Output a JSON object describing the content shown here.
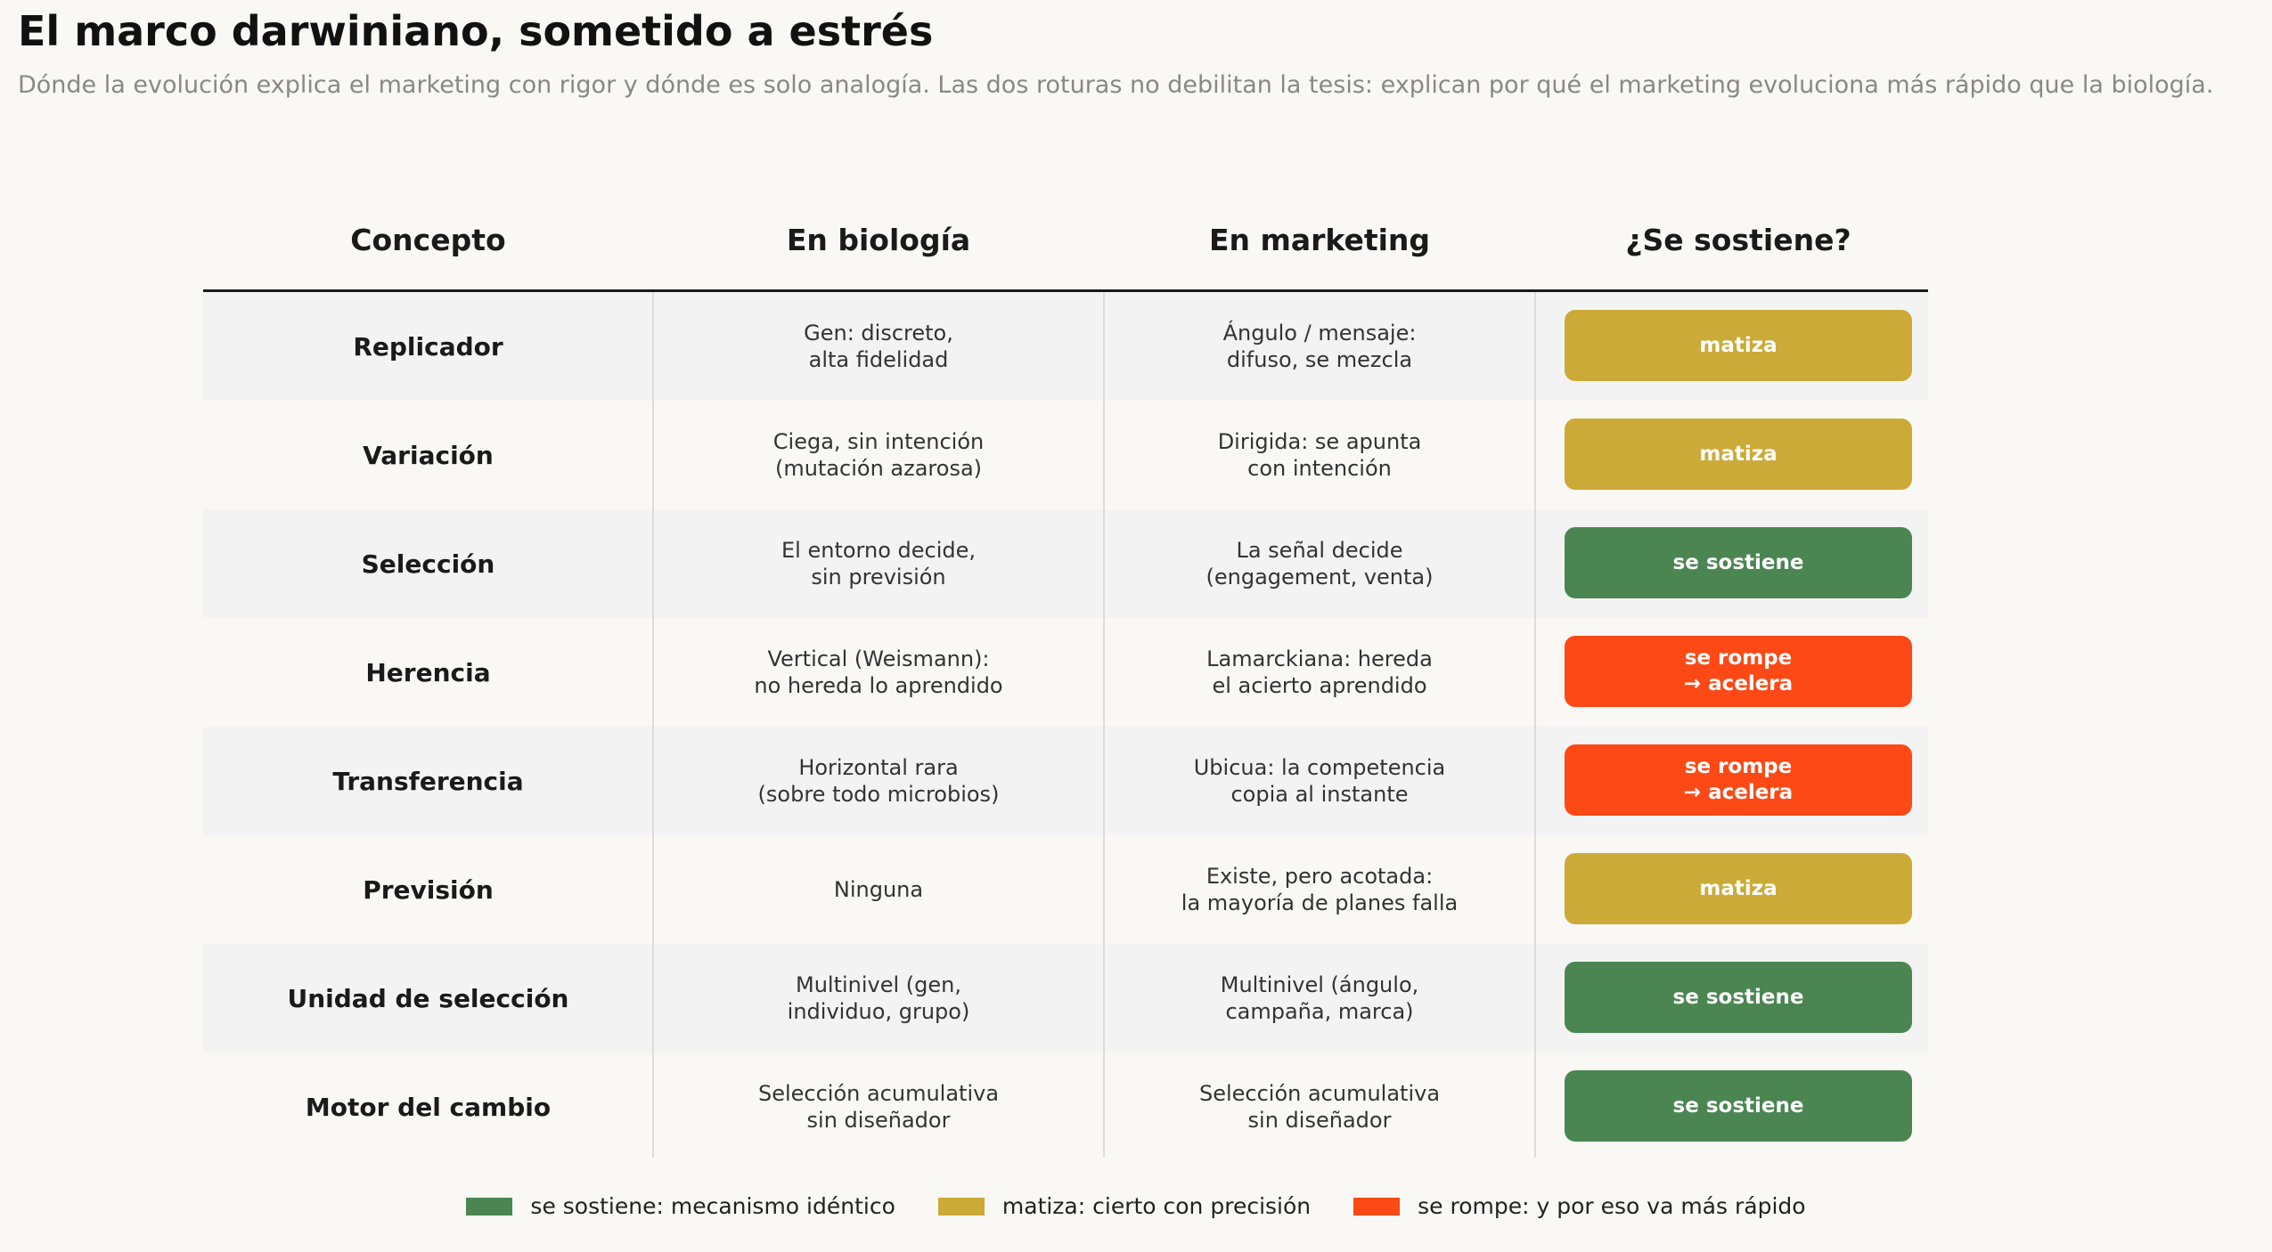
{
  "title": "El marco darwiniano, sometido a estrés",
  "subtitle": "Dónde la evolución explica el marketing con rigor y dónde es solo analogía. Las dos roturas no debilitan la tesis: explican por qué el marketing evoluciona más rápido que la biología.",
  "colors": {
    "holds": "#4a8552",
    "nuance": "#ccaa38",
    "breaks": "#fc4915"
  },
  "chart_data": {
    "type": "table",
    "columns": [
      "Concepto",
      "En biología",
      "En marketing",
      "¿Se sostiene?"
    ],
    "rows": [
      {
        "concept": "Replicador",
        "biology": [
          "Gen: discreto,",
          "alta fidelidad"
        ],
        "marketing": [
          "Ángulo / mensaje:",
          "difuso, se mezcla"
        ],
        "verdict": [
          "matiza"
        ],
        "status": "nuance"
      },
      {
        "concept": "Variación",
        "biology": [
          "Ciega, sin intención",
          "(mutación azarosa)"
        ],
        "marketing": [
          "Dirigida: se apunta",
          "con intención"
        ],
        "verdict": [
          "matiza"
        ],
        "status": "nuance"
      },
      {
        "concept": "Selección",
        "biology": [
          "El entorno decide,",
          "sin previsión"
        ],
        "marketing": [
          "La señal decide",
          "(engagement, venta)"
        ],
        "verdict": [
          "se sostiene"
        ],
        "status": "holds"
      },
      {
        "concept": "Herencia",
        "biology": [
          "Vertical (Weismann):",
          "no hereda lo aprendido"
        ],
        "marketing": [
          "Lamarckiana: hereda",
          "el acierto aprendido"
        ],
        "verdict": [
          "se rompe",
          "→ acelera"
        ],
        "status": "breaks"
      },
      {
        "concept": "Transferencia",
        "biology": [
          "Horizontal rara",
          "(sobre todo microbios)"
        ],
        "marketing": [
          "Ubicua: la competencia",
          "copia al instante"
        ],
        "verdict": [
          "se rompe",
          "→ acelera"
        ],
        "status": "breaks"
      },
      {
        "concept": "Previsión",
        "biology": [
          "Ninguna"
        ],
        "marketing": [
          "Existe, pero acotada:",
          "la mayoría de planes falla"
        ],
        "verdict": [
          "matiza"
        ],
        "status": "nuance"
      },
      {
        "concept": "Unidad de selección",
        "biology": [
          "Multinivel (gen,",
          "individuo, grupo)"
        ],
        "marketing": [
          "Multinivel (ángulo,",
          "campaña, marca)"
        ],
        "verdict": [
          "se sostiene"
        ],
        "status": "holds"
      },
      {
        "concept": "Motor del cambio",
        "biology": [
          "Selección acumulativa",
          "sin diseñador"
        ],
        "marketing": [
          "Selección acumulativa",
          "sin diseñador"
        ],
        "verdict": [
          "se sostiene"
        ],
        "status": "holds"
      }
    ],
    "legend": [
      {
        "label": "se sostiene: mecanismo idéntico",
        "status": "holds"
      },
      {
        "label": "matiza: cierto con precisión",
        "status": "nuance"
      },
      {
        "label": "se rompe: y por eso va más rápido",
        "status": "breaks"
      }
    ]
  }
}
